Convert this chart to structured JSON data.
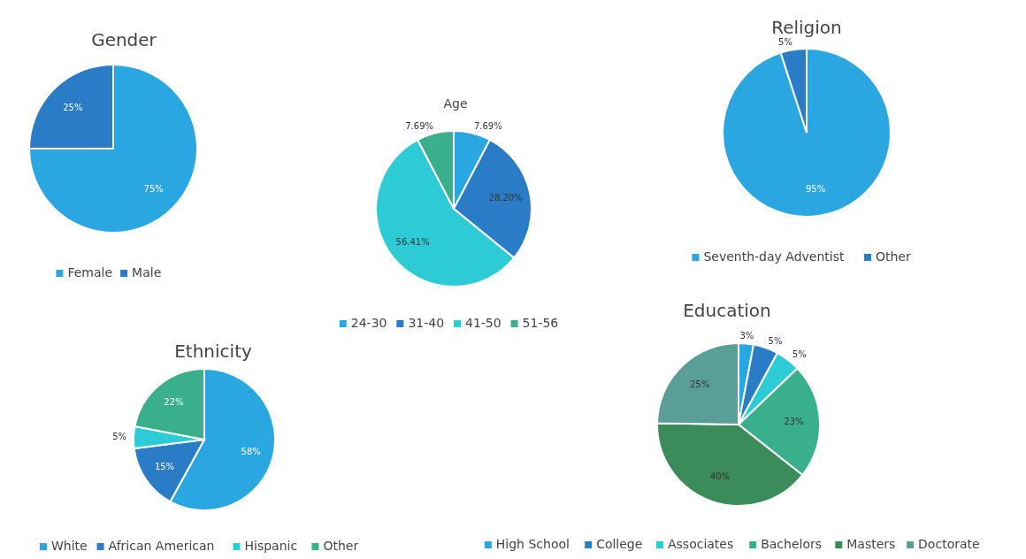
{
  "chart_data": [
    {
      "type": "pie",
      "title": "Gender",
      "categories": [
        "Female",
        "Male"
      ],
      "values": [
        75,
        25
      ],
      "value_labels": [
        "75%",
        "25%"
      ],
      "colors": [
        "#2aa7e0",
        "#2b7cc6"
      ],
      "legend": "bottom"
    },
    {
      "type": "pie",
      "title": "Age",
      "categories": [
        "24-30",
        "31-40",
        "41-50",
        "51-56"
      ],
      "values": [
        7.69,
        28.2,
        56.41,
        7.69
      ],
      "value_labels": [
        "7.69%",
        "28.20%",
        "56.41%",
        "7.69%"
      ],
      "colors": [
        "#2aa7e0",
        "#2b7cc6",
        "#2ccbd5",
        "#3aaf8c"
      ],
      "legend": "bottom"
    },
    {
      "type": "pie",
      "title": "Religion",
      "categories": [
        "Seventh-day Adventist",
        "Other"
      ],
      "values": [
        95,
        5
      ],
      "value_labels": [
        "95%",
        "5%"
      ],
      "colors": [
        "#2aa7e0",
        "#2b7cc6"
      ],
      "legend": "bottom"
    },
    {
      "type": "pie",
      "title": "Ethnicity",
      "categories": [
        "White",
        "African American",
        "Hispanic",
        "Other"
      ],
      "values": [
        58,
        15,
        5,
        22
      ],
      "value_labels": [
        "58%",
        "15%",
        "5%",
        "22%"
      ],
      "colors": [
        "#2aa7e0",
        "#2b7cc6",
        "#2ccbd5",
        "#3aaf8c"
      ],
      "legend": "bottom"
    },
    {
      "type": "pie",
      "title": "Education",
      "categories": [
        "High School",
        "College",
        "Associates",
        "Bachelors",
        "Masters",
        "Doctorate"
      ],
      "values": [
        3,
        5,
        5,
        23,
        40,
        25
      ],
      "value_labels": [
        "3%",
        "5%",
        "5%",
        "23%",
        "40%",
        "25%"
      ],
      "colors": [
        "#2aa7e0",
        "#2b7cc6",
        "#2ccbd5",
        "#3aaf8c",
        "#3b8c5a",
        "#5a9e98"
      ],
      "legend": "bottom"
    }
  ]
}
